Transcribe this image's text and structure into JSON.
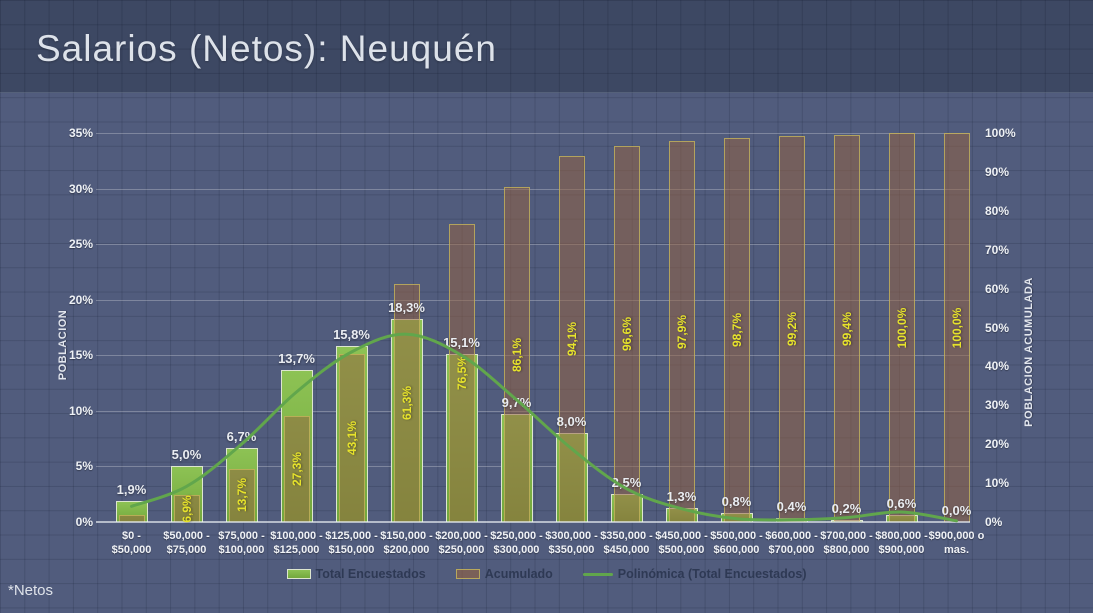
{
  "page": {
    "title": "Salarios (Netos): Neuquén",
    "footnote": "*Netos"
  },
  "legend": [
    {
      "swatch": "bar-green",
      "label": "Total Encuestados"
    },
    {
      "swatch": "bar-brown",
      "label": "Acumulado"
    },
    {
      "swatch": "line-green",
      "label": "Polinómica (Total Encuestados)"
    }
  ],
  "colors": {
    "background": "#515c7d",
    "header_background": "#3d4863",
    "bar_green": "#7fb545",
    "bar_green_border": "#dde6cf",
    "bar_brown": "rgba(150,98,64,0.52)",
    "bar_brown_border": "rgba(200,186,94,0.75)",
    "trend_line": "#61a64c",
    "cumulative_label": "#e7e32b",
    "light_text": "#eef1f5",
    "legend_text": "#2e3954"
  },
  "chart_data": {
    "type": "bar",
    "title": "Salarios (Netos): Neuquén",
    "legend_position": "bottom",
    "grid": true,
    "categories": [
      "$0 - $50,000",
      "$50,000 - $75,000",
      "$75,000 - $100,000",
      "$100,000 - $125,000",
      "$125,000 - $150,000",
      "$150,000 - $200,000",
      "$200,000 - $250,000",
      "$250,000 - $300,000",
      "$300,000 - $350,000",
      "$350,000 - $450,000",
      "$450,000 - $500,000",
      "$500,000 - $600,000",
      "$600,000 - $700,000",
      "$700,000 - $800,000",
      "$800,000 - $900,000",
      "$900,000 o mas."
    ],
    "category_tick_lines": [
      [
        "$0 - $50,000"
      ],
      [
        "$50,000 -",
        "$75,000"
      ],
      [
        "$75,000 -",
        "$100,000"
      ],
      [
        "$100,000 -",
        "$125,000"
      ],
      [
        "$125,000 -",
        "$150,000"
      ],
      [
        "$150,000 -",
        "$200,000"
      ],
      [
        "$200,000 -",
        "$250,000"
      ],
      [
        "$250,000 -",
        "$300,000"
      ],
      [
        "$300,000 -",
        "$350,000"
      ],
      [
        "$350,000 -",
        "$450,000"
      ],
      [
        "$450,000 -",
        "$500,000"
      ],
      [
        "$500,000 -",
        "$600,000"
      ],
      [
        "$600,000 -",
        "$700,000"
      ],
      [
        "$700,000 -",
        "$800,000"
      ],
      [
        "$800,000 -",
        "$900,000"
      ],
      [
        "$900,000 o",
        "mas."
      ]
    ],
    "series": [
      {
        "name": "Total Encuestados",
        "chart_type": "bar",
        "axis": "left",
        "values": [
          1.9,
          5.0,
          6.7,
          13.7,
          15.8,
          18.3,
          15.1,
          9.7,
          8.0,
          2.5,
          1.3,
          0.8,
          0.4,
          0.2,
          0.6,
          0.0
        ],
        "data_labels": [
          "1,9%",
          "5,0%",
          "6,7%",
          "13,7%",
          "15,8%",
          "18,3%",
          "15,1%",
          "9,7%",
          "8,0%",
          "2,5%",
          "1,3%",
          "0,8%",
          "0,4%",
          "0,2%",
          "0,6%",
          "0,0%"
        ]
      },
      {
        "name": "Acumulado",
        "chart_type": "bar",
        "axis": "right",
        "values": [
          1.9,
          6.9,
          13.7,
          27.3,
          43.1,
          61.3,
          76.5,
          86.1,
          94.1,
          96.6,
          97.9,
          98.7,
          99.2,
          99.4,
          100.0,
          100.0
        ],
        "data_labels": [
          "",
          "6,9%",
          "13,7%",
          "27,3%",
          "43,1%",
          "61,3%",
          "76,5%",
          "86,1%",
          "94,1%",
          "96,6%",
          "97,9%",
          "98,7%",
          "99,2%",
          "99,4%",
          "100,0%",
          "100,0%"
        ]
      },
      {
        "name": "Polinómica (Total Encuestados)",
        "chart_type": "line",
        "axis": "left",
        "values": [
          1.4,
          3.2,
          7.0,
          11.7,
          15.3,
          16.9,
          15.0,
          11.0,
          6.6,
          3.0,
          1.2,
          0.3,
          0.2,
          0.4,
          0.9,
          0.1
        ]
      }
    ],
    "left_axis": {
      "title": "POBLACION",
      "min": 0,
      "max": 35,
      "step": 5,
      "tick_labels": [
        "0%",
        "5%",
        "10%",
        "15%",
        "20%",
        "25%",
        "30%",
        "35%"
      ]
    },
    "right_axis": {
      "title": "POBLACION ACUMULADA",
      "min": 0,
      "max": 100,
      "step": 10,
      "tick_labels": [
        "0%",
        "10%",
        "20%",
        "30%",
        "40%",
        "50%",
        "60%",
        "70%",
        "80%",
        "90%",
        "100%"
      ]
    }
  }
}
